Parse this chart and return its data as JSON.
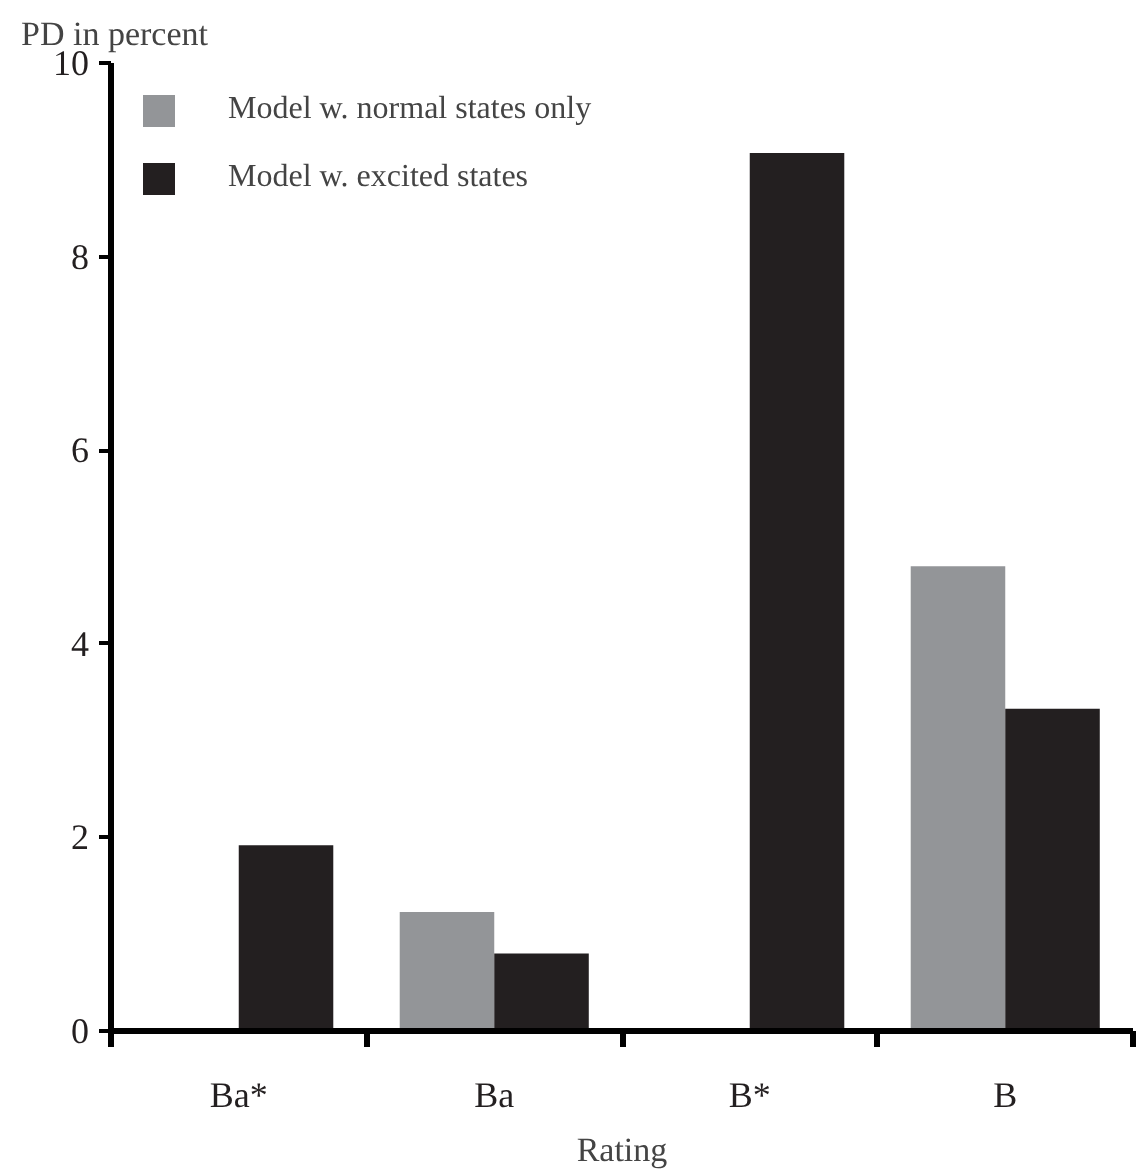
{
  "chart_data": {
    "type": "bar",
    "ylabel": "PD in percent",
    "xlabel": "Rating",
    "categories": [
      "Ba*",
      "Ba",
      "B*",
      "B"
    ],
    "series": [
      {
        "name": "Model w. normal states only",
        "color": "#939598",
        "values": [
          null,
          1.23,
          null,
          4.8
        ]
      },
      {
        "name": "Model w. excited states",
        "color": "#231f20",
        "values": [
          1.92,
          0.8,
          9.07,
          3.33
        ]
      }
    ],
    "ylim": [
      0,
      10
    ],
    "yticks": [
      0,
      2,
      4,
      6,
      8,
      10
    ],
    "grid": false,
    "legend": "top left"
  }
}
